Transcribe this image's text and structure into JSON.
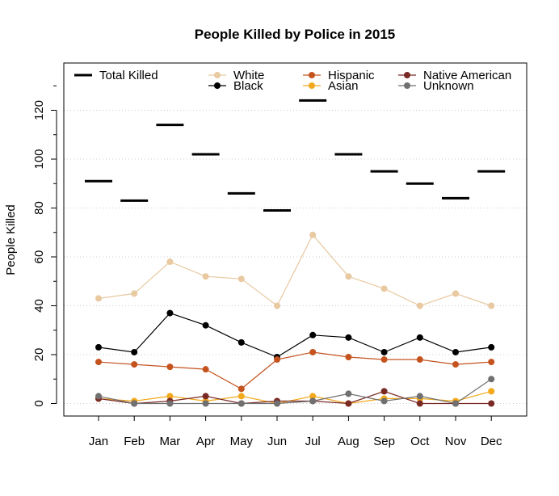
{
  "chart_data": {
    "type": "line",
    "title": "People Killed by Police in 2015",
    "ylabel": "People Killed",
    "xlabel": "",
    "categories": [
      "Jan",
      "Feb",
      "Mar",
      "Apr",
      "May",
      "Jun",
      "Jul",
      "Aug",
      "Sep",
      "Oct",
      "Nov",
      "Dec"
    ],
    "ylim": [
      -5,
      138
    ],
    "yticks": [
      0,
      20,
      40,
      60,
      80,
      100,
      120
    ],
    "grid": "horizontal-dotted",
    "legend": "top",
    "total": {
      "name": "Total Killed",
      "color": "#000000",
      "values": [
        91,
        83,
        114,
        102,
        86,
        79,
        124,
        102,
        95,
        90,
        84,
        95
      ]
    },
    "series": [
      {
        "name": "White",
        "color": "#E8C9A0",
        "values": [
          43,
          45,
          58,
          52,
          51,
          40,
          69,
          52,
          47,
          40,
          45,
          40
        ]
      },
      {
        "name": "Black",
        "color": "#000000",
        "values": [
          23,
          21,
          37,
          32,
          25,
          19,
          28,
          27,
          21,
          27,
          21,
          23
        ]
      },
      {
        "name": "Hispanic",
        "color": "#C4531E",
        "values": [
          17,
          16,
          15,
          14,
          6,
          18,
          21,
          19,
          18,
          18,
          16,
          17
        ]
      },
      {
        "name": "Asian",
        "color": "#F2A91C",
        "values": [
          2,
          1,
          3,
          1,
          3,
          0,
          3,
          0,
          2,
          2,
          1,
          5
        ]
      },
      {
        "name": "Native American",
        "color": "#7A2A25",
        "values": [
          2,
          0,
          1,
          3,
          0,
          1,
          1,
          0,
          5,
          0,
          0,
          0
        ]
      },
      {
        "name": "Unknown",
        "color": "#707070",
        "values": [
          3,
          0,
          0,
          0,
          0,
          0,
          1,
          4,
          1,
          3,
          0,
          10
        ]
      }
    ]
  }
}
